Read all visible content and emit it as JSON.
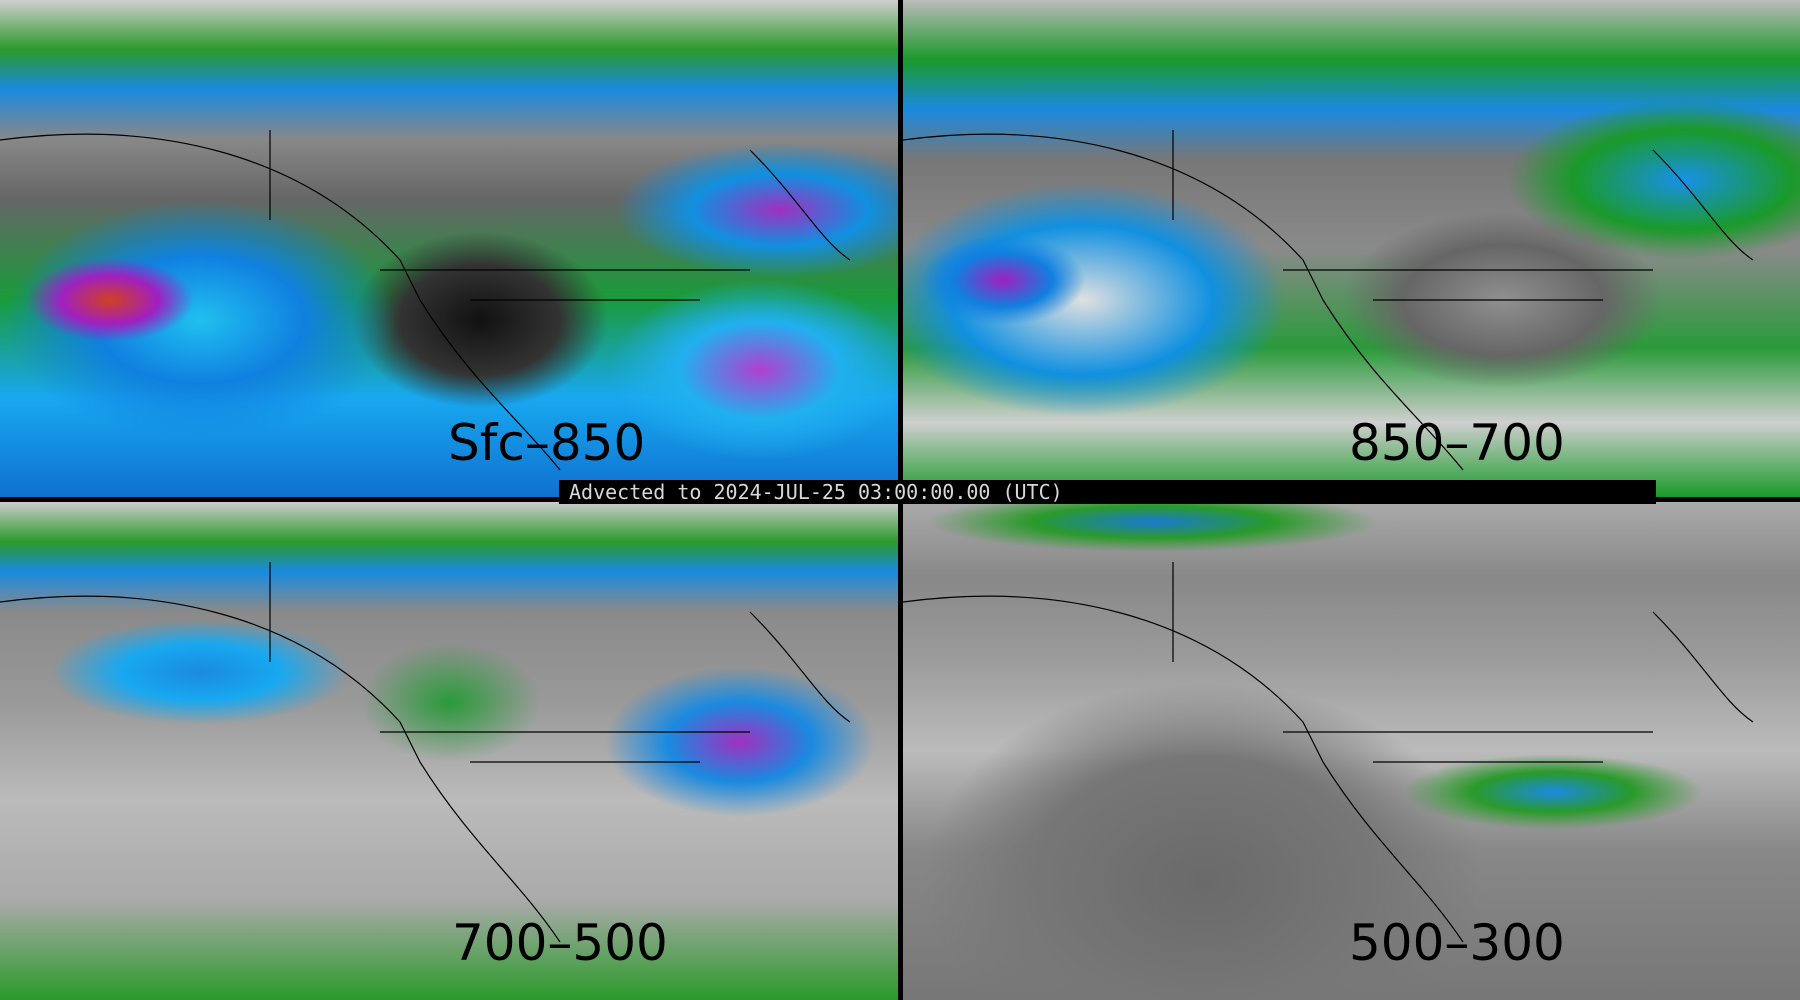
{
  "panels": [
    {
      "label": "Sfc–850"
    },
    {
      "label": "850–700"
    },
    {
      "label": "700–500"
    },
    {
      "label": "500–300"
    }
  ],
  "banner": {
    "text": "Advected to 2024-JUL-25 03:00:00.00 (UTC)"
  },
  "colors": {
    "low": "#808080",
    "green": "#2a9a2a",
    "blue": "#1a8ae0",
    "cyan": "#18c0f0",
    "purple": "#a030c0",
    "red": "#d04020",
    "background": "#000000"
  }
}
